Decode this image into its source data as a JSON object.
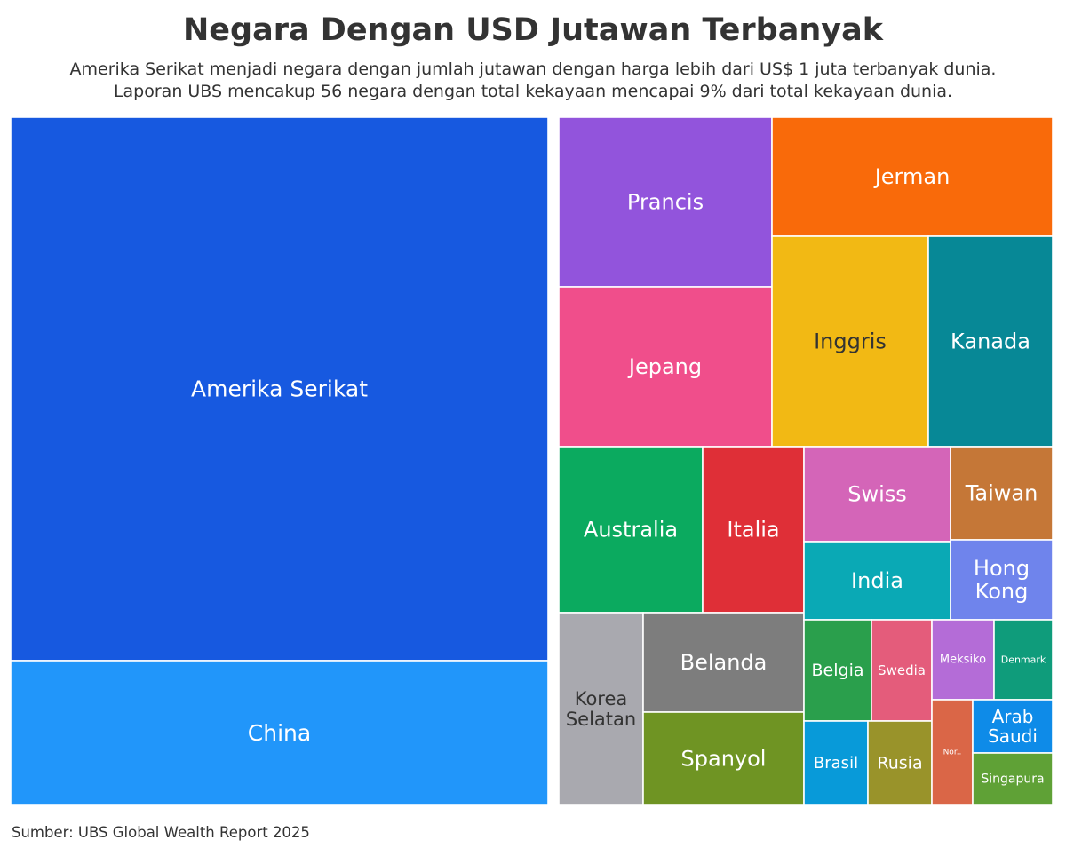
{
  "header": {
    "title": "Negara Dengan USD Jutawan Terbanyak",
    "subtitle_line1": "Amerika Serikat menjadi negara dengan jumlah jutawan dengan harga lebih dari US$ 1 juta terbanyak dunia.",
    "subtitle_line2": "Laporan UBS mencakup 56 negara dengan total kekayaan mencapai 9% dari total kekayaan dunia."
  },
  "footer": {
    "source": "Sumber: UBS Global Wealth Report 2025"
  },
  "chart_data": {
    "type": "treemap",
    "title": "Negara Dengan USD Jutawan Terbanyak",
    "series": [
      {
        "name": "Amerika Serikat",
        "label_lines": [
          "Amerika Serikat"
        ],
        "relative_area": 100.0,
        "color": "#1759E0",
        "text_color": "#ffffff"
      },
      {
        "name": "China",
        "label_lines": [
          "China"
        ],
        "relative_area": 26.6,
        "color": "#2196FA",
        "text_color": "#ffffff"
      },
      {
        "name": "Prancis",
        "label_lines": [
          "Prancis"
        ],
        "relative_area": 12.0,
        "color": "#9254DC",
        "text_color": "#ffffff"
      },
      {
        "name": "Jepang",
        "label_lines": [
          "Jepang"
        ],
        "relative_area": 11.4,
        "color": "#F04E8B",
        "text_color": "#ffffff"
      },
      {
        "name": "Jerman",
        "label_lines": [
          "Jerman"
        ],
        "relative_area": 11.0,
        "color": "#F96A0A",
        "text_color": "#ffffff"
      },
      {
        "name": "Inggris",
        "label_lines": [
          "Inggris"
        ],
        "relative_area": 10.8,
        "color": "#F2B914",
        "text_color": "#333333"
      },
      {
        "name": "Kanada",
        "label_lines": [
          "Kanada"
        ],
        "relative_area": 9.9,
        "color": "#078896",
        "text_color": "#ffffff"
      },
      {
        "name": "Australia",
        "label_lines": [
          "Australia"
        ],
        "relative_area": 7.9,
        "color": "#0BAA5F",
        "text_color": "#ffffff"
      },
      {
        "name": "Italia",
        "label_lines": [
          "Italia"
        ],
        "relative_area": 5.6,
        "color": "#DF2F37",
        "text_color": "#ffffff"
      },
      {
        "name": "Korea Selatan",
        "label_lines": [
          "Korea",
          "Selatan"
        ],
        "relative_area": 5.4,
        "color": "#A9A9AF",
        "text_color": "#333333"
      },
      {
        "name": "Belanda",
        "label_lines": [
          "Belanda"
        ],
        "relative_area": 4.9,
        "color": "#7D7D7D",
        "text_color": "#ffffff"
      },
      {
        "name": "Spanyol",
        "label_lines": [
          "Spanyol"
        ],
        "relative_area": 4.4,
        "color": "#6F9423",
        "text_color": "#ffffff"
      },
      {
        "name": "Swiss",
        "label_lines": [
          "Swiss"
        ],
        "relative_area": 4.7,
        "color": "#D465B8",
        "text_color": "#ffffff"
      },
      {
        "name": "India",
        "label_lines": [
          "India"
        ],
        "relative_area": 3.8,
        "color": "#0AA9B5",
        "text_color": "#ffffff"
      },
      {
        "name": "Taiwan",
        "label_lines": [
          "Taiwan"
        ],
        "relative_area": 3.0,
        "color": "#C57737",
        "text_color": "#ffffff"
      },
      {
        "name": "Hong Kong",
        "label_lines": [
          "Hong",
          "Kong"
        ],
        "relative_area": 2.6,
        "color": "#6F84EC",
        "text_color": "#ffffff"
      },
      {
        "name": "Belgia",
        "label_lines": [
          "Belgia"
        ],
        "relative_area": 2.1,
        "color": "#2A9F4C",
        "text_color": "#ffffff"
      },
      {
        "name": "Swedia",
        "label_lines": [
          "Swedia"
        ],
        "relative_area": 2.0,
        "color": "#E45C7B",
        "text_color": "#ffffff"
      },
      {
        "name": "Meksiko",
        "label_lines": [
          "Meksiko"
        ],
        "relative_area": 1.4,
        "color": "#B46CD7",
        "text_color": "#ffffff"
      },
      {
        "name": "Denmark",
        "label_lines": [
          "Denmark"
        ],
        "relative_area": 1.4,
        "color": "#0F9C7B",
        "text_color": "#ffffff"
      },
      {
        "name": "Brasil",
        "label_lines": [
          "Brasil"
        ],
        "relative_area": 1.7,
        "color": "#089AD9",
        "text_color": "#ffffff"
      },
      {
        "name": "Rusia",
        "label_lines": [
          "Rusia"
        ],
        "relative_area": 1.7,
        "color": "#99932A",
        "text_color": "#ffffff"
      },
      {
        "name": "Norwegia",
        "label_lines": [
          "Nor.."
        ],
        "relative_area": 0.9,
        "color": "#DA6647",
        "text_color": "#ffffff"
      },
      {
        "name": "Arab Saudi",
        "label_lines": [
          "Arab",
          "Saudi"
        ],
        "relative_area": 1.0,
        "color": "#0E8BE8",
        "text_color": "#ffffff"
      },
      {
        "name": "Singapura",
        "label_lines": [
          "Singapura"
        ],
        "relative_area": 0.9,
        "color": "#5FA136",
        "text_color": "#ffffff"
      }
    ]
  }
}
